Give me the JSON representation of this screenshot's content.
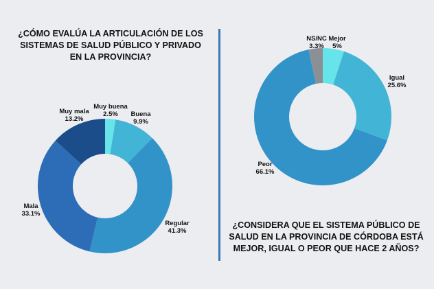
{
  "chart_data": [
    {
      "type": "pie",
      "title": "¿CÓMO EVALÚA LA ARTICULACIÓN DE LOS\nSISTEMAS DE SALUD PÚBLICO Y PRIVADO\nEN LA PROVINCIA?",
      "slices": [
        {
          "label": "Muy buena",
          "value": 2.5,
          "value_text": "2.5%",
          "color": "#67e3ea"
        },
        {
          "label": "Buena",
          "value": 9.9,
          "value_text": "9.9%",
          "color": "#42b5d6"
        },
        {
          "label": "Regular",
          "value": 41.3,
          "value_text": "41.3%",
          "color": "#3293c8"
        },
        {
          "label": "Mala",
          "value": 33.1,
          "value_text": "33.1%",
          "color": "#2d6db7"
        },
        {
          "label": "Muy mala",
          "value": 13.2,
          "value_text": "13.2%",
          "color": "#1a4d89"
        }
      ]
    },
    {
      "type": "pie",
      "title": "¿CONSIDERA QUE EL SISTEMA PÚBLICO DE\nSALUD EN LA PROVINCIA DE CÓRDOBA ESTÁ\nMEJOR, IGUAL O PEOR QUE HACE 2 AÑOS?",
      "slices": [
        {
          "label": "Mejor",
          "value": 5,
          "value_text": "5%",
          "color": "#67e3ea"
        },
        {
          "label": "Igual",
          "value": 25.6,
          "value_text": "25.6%",
          "color": "#42b5d6"
        },
        {
          "label": "Peor",
          "value": 66.1,
          "value_text": "66.1%",
          "color": "#3293c8"
        },
        {
          "label": "NS/NC",
          "value": 3.3,
          "value_text": "3.3%",
          "color": "#8a9095"
        }
      ]
    }
  ]
}
